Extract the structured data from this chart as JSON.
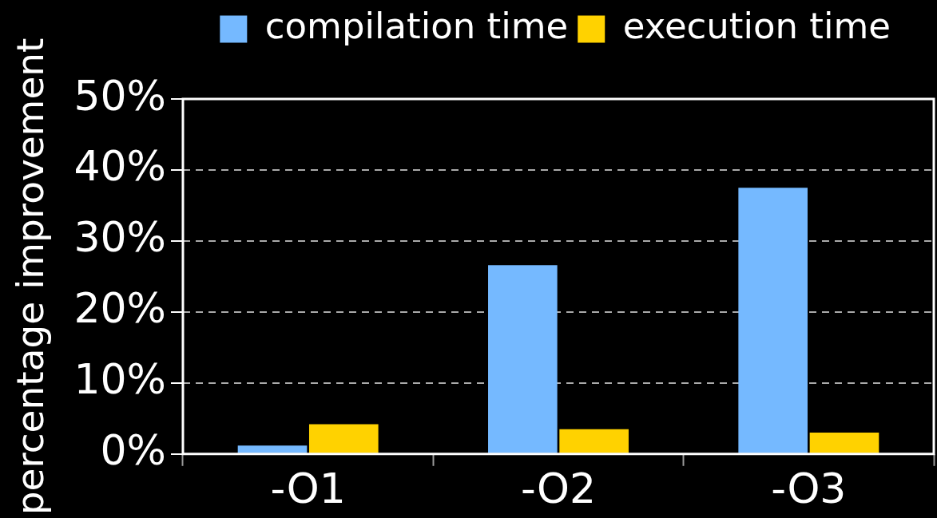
{
  "chart_data": {
    "type": "bar",
    "ylabel": "percentage improvement",
    "categories": [
      "-O1",
      "-O2",
      "-O3"
    ],
    "series": [
      {
        "name": "compilation time",
        "color": "#75b9ff",
        "values": [
          1.2,
          26.6,
          37.5
        ]
      },
      {
        "name": "execution time",
        "color": "#ffd200",
        "values": [
          4.2,
          3.5,
          3.0
        ]
      }
    ],
    "ylim": [
      0,
      50
    ],
    "yticks": [
      {
        "value": 0,
        "label": "0%"
      },
      {
        "value": 10,
        "label": "10%"
      },
      {
        "value": 20,
        "label": "20%"
      },
      {
        "value": 30,
        "label": "30%"
      },
      {
        "value": 40,
        "label": "40%"
      },
      {
        "value": 50,
        "label": "50%"
      }
    ],
    "grid": "y",
    "legend": "top right"
  }
}
